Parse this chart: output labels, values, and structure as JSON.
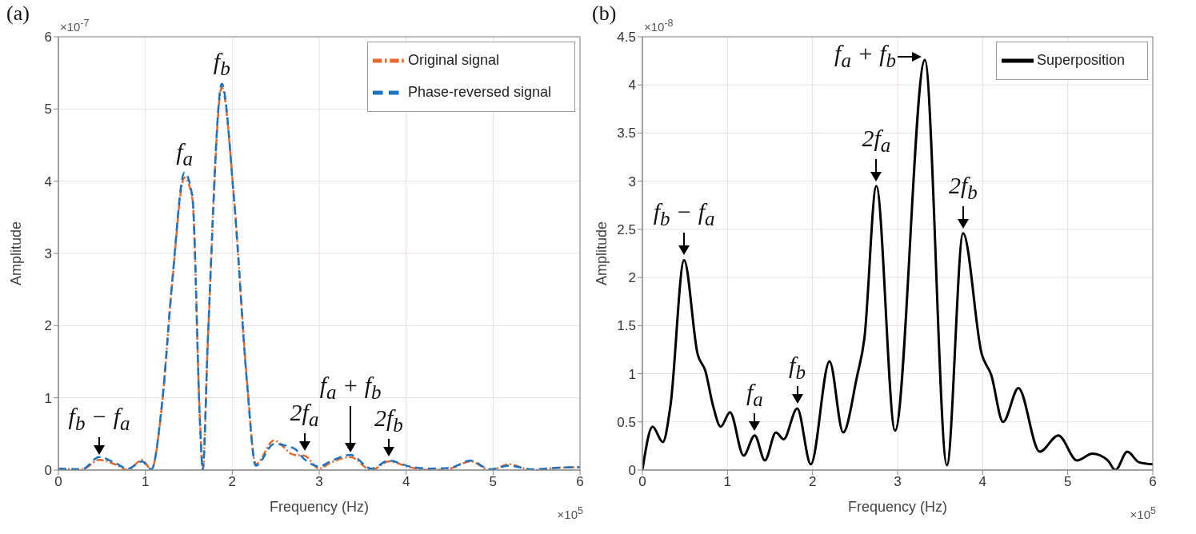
{
  "chart_data": [
    {
      "type": "line",
      "title": "(a)",
      "xlabel": "Frequency (Hz)",
      "ylabel": "Amplitude",
      "x": [
        0,
        0.27,
        0.47,
        0.65,
        0.8,
        0.96,
        1.07,
        1.19,
        1.31,
        1.45,
        1.54,
        1.63,
        1.66,
        1.72,
        1.88,
        2.02,
        2.17,
        2.27,
        2.48,
        2.71,
        2.83,
        3.0,
        3.13,
        3.36,
        3.6,
        3.8,
        4.04,
        4.28,
        4.5,
        4.74,
        4.97,
        5.18,
        5.45,
        5.72,
        6
      ],
      "series": [
        {
          "name": "Original signal",
          "color": "#e8672a",
          "line_style": "dashed",
          "values": [
            0.02,
            0.01,
            0.14,
            0.08,
            0,
            0.14,
            0.01,
            0.88,
            2.6,
            4.05,
            3.77,
            0.64,
            0,
            1.81,
            5.3,
            3.77,
            1.23,
            0.08,
            0.41,
            0.21,
            0.2,
            0.02,
            0.1,
            0.18,
            0,
            0.12,
            0.04,
            0,
            0.02,
            0.12,
            0,
            0.08,
            0,
            0.03,
            0.04
          ]
        },
        {
          "name": "Phase-reversed signal",
          "color": "#1a74c4",
          "line_style": "dashed",
          "values": [
            0.02,
            0.01,
            0.18,
            0.1,
            0.02,
            0.12,
            0.01,
            0.9,
            2.62,
            4.12,
            3.8,
            0.62,
            0,
            1.83,
            5.35,
            3.75,
            1.2,
            0.06,
            0.36,
            0.3,
            0.15,
            0.05,
            0.12,
            0.21,
            0.02,
            0.13,
            0.05,
            0.02,
            0.03,
            0.13,
            0.01,
            0.06,
            0.01,
            0.03,
            0.04
          ]
        }
      ],
      "xlim": [
        0,
        6
      ],
      "ylim": [
        0,
        6
      ],
      "xticks": [
        0,
        1,
        2,
        3,
        4,
        5,
        6
      ],
      "yticks": [
        0,
        1,
        2,
        3,
        4,
        5,
        6
      ],
      "grid": true,
      "legend": "top right",
      "annotations": [
        {
          "text": "f$_{b}$ − f$_{a}$",
          "x": 0.47,
          "y": 0.14
        },
        {
          "text": "f$_{a}$",
          "x": 1.45,
          "y": 4.05
        },
        {
          "text": "f$_{b}$",
          "x": 1.88,
          "y": 5.3
        },
        {
          "text": "2f$_{a}$",
          "x": 2.83,
          "y": 0.2
        },
        {
          "text": "f$_{a}$ + f$_{b}$",
          "x": 3.36,
          "y": 0.18
        },
        {
          "text": "2f$_{b}$",
          "x": 3.8,
          "y": 0.12
        },
        "×10$^{-7}$",
        "×10$^{5}$"
      ]
    },
    {
      "type": "line",
      "title": "(b)",
      "xlabel": "Frequency (Hz)",
      "ylabel": "Amplitude",
      "x": [
        0,
        0.12,
        0.24,
        0.33,
        0.49,
        0.65,
        0.74,
        0.83,
        0.92,
        1.03,
        1.19,
        1.32,
        1.44,
        1.57,
        1.66,
        1.82,
        1.98,
        2.2,
        2.36,
        2.52,
        2.61,
        2.75,
        2.97,
        3.32,
        3.58,
        3.77,
        3.99,
        4.1,
        4.24,
        4.42,
        4.67,
        4.89,
        5.11,
        5.29,
        5.47,
        5.56,
        5.7,
        5.84,
        6
      ],
      "series": [
        {
          "name": "Superposition",
          "color": "#000000",
          "line_style": "solid",
          "values": [
            0,
            0.45,
            0.29,
            0.67,
            2.18,
            1.2,
            1.03,
            0.67,
            0.45,
            0.6,
            0.15,
            0.36,
            0.1,
            0.39,
            0.32,
            0.64,
            0.06,
            1.13,
            0.39,
            0.96,
            1.37,
            2.95,
            0.41,
            4.26,
            0.05,
            2.46,
            1.2,
            0.99,
            0.5,
            0.85,
            0.19,
            0.36,
            0.1,
            0.17,
            0.1,
            0,
            0.19,
            0.08,
            0.06
          ]
        }
      ],
      "xlim": [
        0,
        6
      ],
      "ylim": [
        0,
        4.5
      ],
      "xticks": [
        0,
        1,
        2,
        3,
        4,
        5,
        6
      ],
      "yticks": [
        0,
        0.5,
        1,
        1.5,
        2,
        2.5,
        3,
        3.5,
        4,
        4.5
      ],
      "grid": true,
      "legend": "top right",
      "annotations": [
        {
          "text": "f$_{b}$ − f$_{a}$",
          "x": 0.49,
          "y": 2.18
        },
        {
          "text": "f$_{a}$",
          "x": 1.32,
          "y": 0.36
        },
        {
          "text": "f$_{b}$",
          "x": 1.82,
          "y": 0.64
        },
        {
          "text": "2f$_{a}$",
          "x": 2.75,
          "y": 2.95
        },
        {
          "text": "f$_{a}$ + f$_{b}$",
          "x": 3.32,
          "y": 4.26
        },
        {
          "text": "2f$_{b}$",
          "x": 3.77,
          "y": 2.46
        },
        "×10$^{-8}$",
        "×10$^{5}$"
      ]
    }
  ]
}
